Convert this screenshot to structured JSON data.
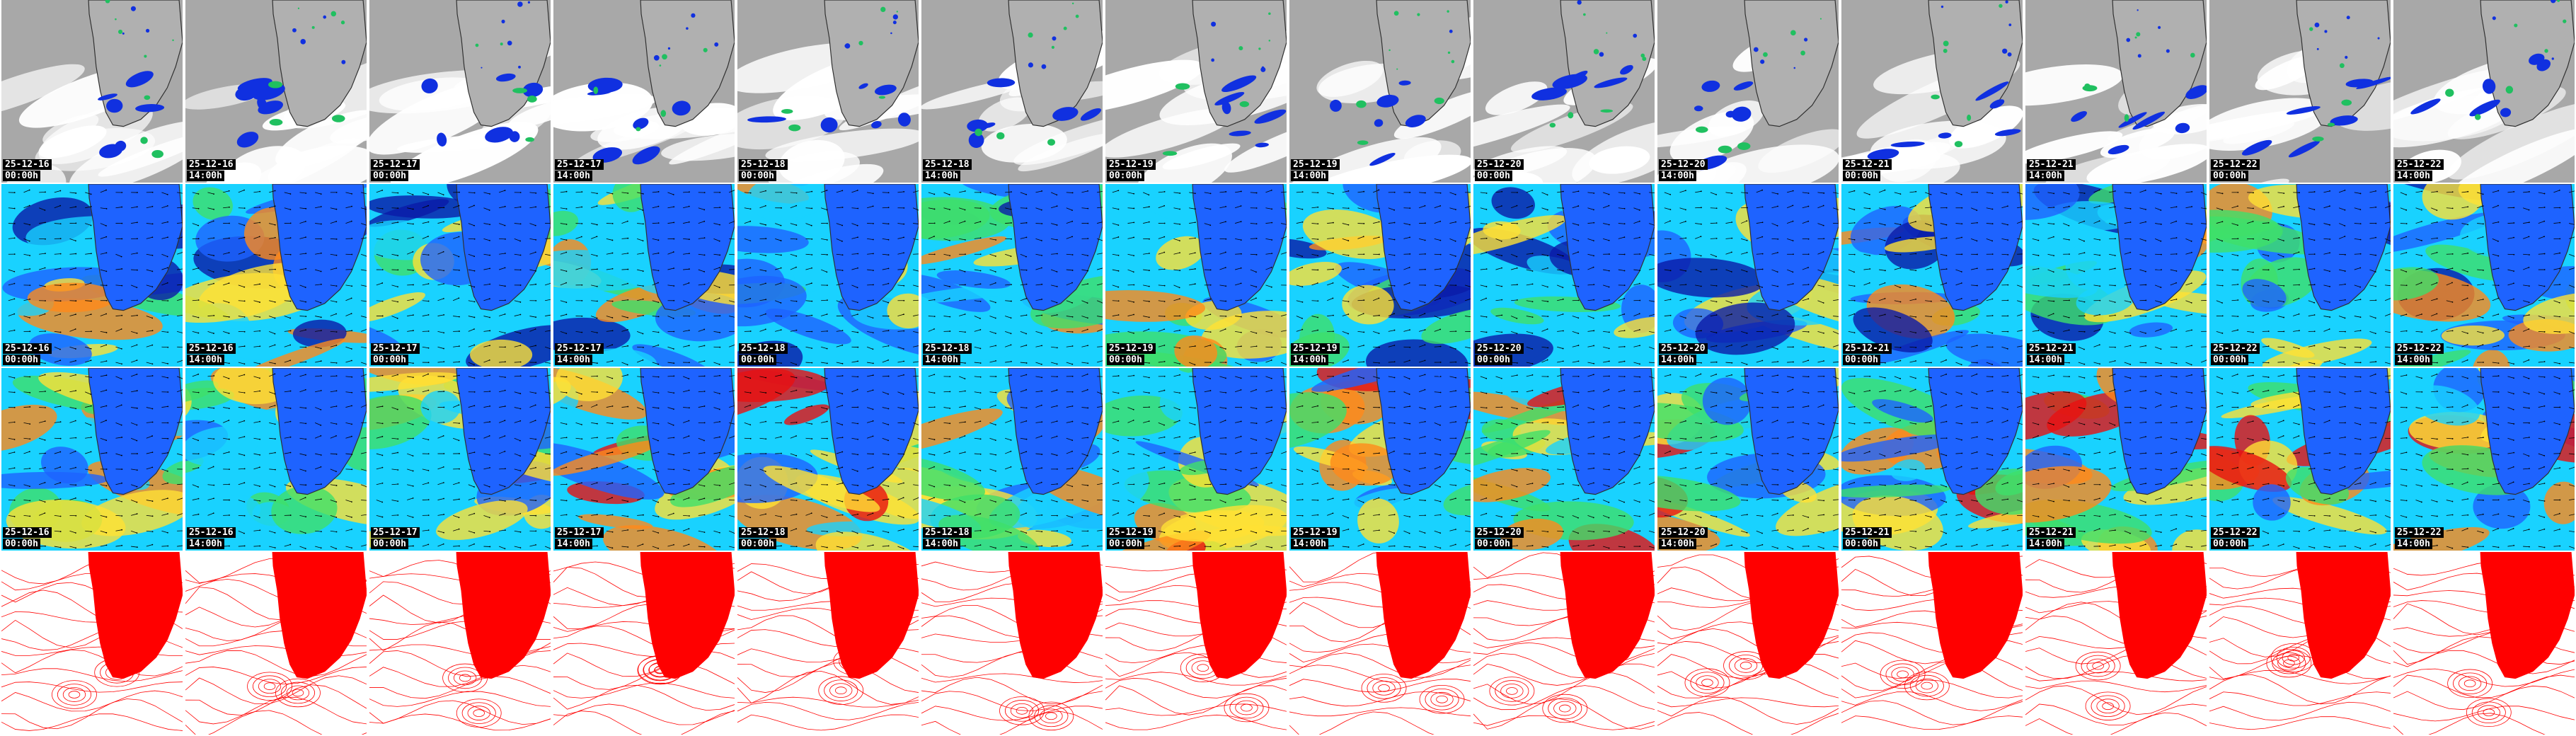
{
  "rows": [
    {
      "id": "cloud-rain",
      "type": "satellite",
      "has_labels": true
    },
    {
      "id": "wind-lower",
      "type": "wind",
      "has_labels": true
    },
    {
      "id": "wind-upper",
      "type": "wind",
      "has_labels": true
    },
    {
      "id": "pressure",
      "type": "isobars",
      "has_labels": false
    }
  ],
  "columns": [
    {
      "date": "25-12-16",
      "hour": "00:00h"
    },
    {
      "date": "25-12-16",
      "hour": "14:00h"
    },
    {
      "date": "25-12-17",
      "hour": "00:00h"
    },
    {
      "date": "25-12-17",
      "hour": "14:00h"
    },
    {
      "date": "25-12-18",
      "hour": "00:00h"
    },
    {
      "date": "25-12-18",
      "hour": "14:00h"
    },
    {
      "date": "25-12-19",
      "hour": "00:00h"
    },
    {
      "date": "25-12-19",
      "hour": "14:00h"
    },
    {
      "date": "25-12-20",
      "hour": "00:00h"
    },
    {
      "date": "25-12-20",
      "hour": "14:00h"
    },
    {
      "date": "25-12-21",
      "hour": "00:00h"
    },
    {
      "date": "25-12-21",
      "hour": "14:00h"
    },
    {
      "date": "25-12-22",
      "hour": "00:00h"
    },
    {
      "date": "25-12-22",
      "hour": "14:00h"
    }
  ],
  "colors": {
    "land_fill": "#ff0000",
    "isobar": "#ff0000",
    "cloud_grey": "#a8a8a8",
    "cloud_white": "#ffffff",
    "rain_blue": "#1030e0",
    "rain_green": "#20c060",
    "wind_deep": "#0a1aa8",
    "wind_blue": "#1e63ff",
    "wind_cyan": "#19d2ff",
    "wind_green": "#3ee06a",
    "wind_yellow": "#ffe135",
    "wind_orange": "#ff8a1a",
    "wind_red": "#e81010",
    "coast": "#303030",
    "arrow": "#000000"
  }
}
